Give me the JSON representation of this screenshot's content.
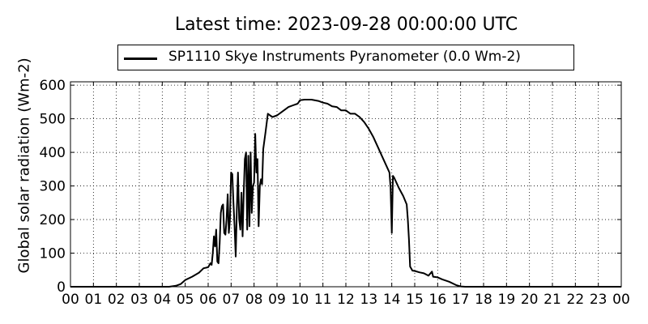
{
  "chart_data": {
    "type": "line",
    "title": "Latest time: 2023-09-28 00:00:00 UTC",
    "xlabel": "",
    "ylabel": "Global solar radiation (Wm-2)",
    "xlim": [
      0,
      24
    ],
    "ylim": [
      0,
      610
    ],
    "grid": true,
    "legend_position": "top",
    "x_tick_labels": [
      "00",
      "01",
      "02",
      "03",
      "04",
      "05",
      "06",
      "07",
      "08",
      "09",
      "10",
      "11",
      "12",
      "13",
      "14",
      "15",
      "16",
      "17",
      "18",
      "19",
      "20",
      "21",
      "22",
      "23",
      "00"
    ],
    "y_tick_labels": [
      "0",
      "100",
      "200",
      "300",
      "400",
      "500",
      "600"
    ],
    "y_ticks": [
      0,
      100,
      200,
      300,
      400,
      500,
      600
    ],
    "series": [
      {
        "name": "SP1110 Skye Instruments Pyranometer (0.0 Wm-2)",
        "color": "#000000",
        "points": [
          [
            0,
            0
          ],
          [
            4.3,
            0
          ],
          [
            4.6,
            3
          ],
          [
            4.8,
            8
          ],
          [
            5.0,
            20
          ],
          [
            5.3,
            30
          ],
          [
            5.6,
            42
          ],
          [
            5.8,
            55
          ],
          [
            6.0,
            58
          ],
          [
            6.1,
            70
          ],
          [
            6.15,
            65
          ],
          [
            6.2,
            100
          ],
          [
            6.25,
            150
          ],
          [
            6.3,
            120
          ],
          [
            6.35,
            170
          ],
          [
            6.4,
            75
          ],
          [
            6.45,
            70
          ],
          [
            6.5,
            130
          ],
          [
            6.55,
            220
          ],
          [
            6.6,
            240
          ],
          [
            6.65,
            245
          ],
          [
            6.7,
            160
          ],
          [
            6.75,
            155
          ],
          [
            6.8,
            200
          ],
          [
            6.85,
            275
          ],
          [
            6.9,
            160
          ],
          [
            6.95,
            200
          ],
          [
            7.0,
            340
          ],
          [
            7.05,
            335
          ],
          [
            7.1,
            250
          ],
          [
            7.15,
            180
          ],
          [
            7.2,
            90
          ],
          [
            7.25,
            230
          ],
          [
            7.3,
            340
          ],
          [
            7.35,
            200
          ],
          [
            7.4,
            170
          ],
          [
            7.45,
            280
          ],
          [
            7.5,
            150
          ],
          [
            7.55,
            280
          ],
          [
            7.6,
            380
          ],
          [
            7.65,
            400
          ],
          [
            7.7,
            170
          ],
          [
            7.75,
            390
          ],
          [
            7.8,
            180
          ],
          [
            7.85,
            400
          ],
          [
            7.9,
            220
          ],
          [
            7.95,
            300
          ],
          [
            8.0,
            310
          ],
          [
            8.05,
            455
          ],
          [
            8.1,
            340
          ],
          [
            8.15,
            380
          ],
          [
            8.2,
            180
          ],
          [
            8.25,
            300
          ],
          [
            8.3,
            320
          ],
          [
            8.35,
            305
          ],
          [
            8.4,
            410
          ],
          [
            8.5,
            460
          ],
          [
            8.6,
            515
          ],
          [
            8.7,
            510
          ],
          [
            8.8,
            505
          ],
          [
            9.0,
            510
          ],
          [
            9.2,
            520
          ],
          [
            9.5,
            535
          ],
          [
            9.7,
            540
          ],
          [
            9.9,
            545
          ],
          [
            10.0,
            555
          ],
          [
            10.2,
            557
          ],
          [
            10.5,
            557
          ],
          [
            10.8,
            553
          ],
          [
            11.0,
            548
          ],
          [
            11.2,
            545
          ],
          [
            11.4,
            537
          ],
          [
            11.6,
            535
          ],
          [
            11.8,
            525
          ],
          [
            12.0,
            525
          ],
          [
            12.2,
            515
          ],
          [
            12.4,
            515
          ],
          [
            12.6,
            505
          ],
          [
            12.8,
            490
          ],
          [
            13.0,
            470
          ],
          [
            13.2,
            445
          ],
          [
            13.4,
            415
          ],
          [
            13.6,
            385
          ],
          [
            13.8,
            355
          ],
          [
            13.9,
            340
          ],
          [
            13.95,
            295
          ],
          [
            14.0,
            160
          ],
          [
            14.05,
            330
          ],
          [
            14.1,
            325
          ],
          [
            14.3,
            295
          ],
          [
            14.5,
            270
          ],
          [
            14.65,
            245
          ],
          [
            14.7,
            200
          ],
          [
            14.75,
            140
          ],
          [
            14.8,
            60
          ],
          [
            14.9,
            48
          ],
          [
            15.0,
            47
          ],
          [
            15.2,
            43
          ],
          [
            15.4,
            40
          ],
          [
            15.6,
            33
          ],
          [
            15.75,
            45
          ],
          [
            15.8,
            30
          ],
          [
            16.0,
            28
          ],
          [
            16.2,
            22
          ],
          [
            16.5,
            15
          ],
          [
            16.8,
            5
          ],
          [
            17.0,
            1
          ],
          [
            17.2,
            0
          ],
          [
            24,
            0
          ]
        ]
      }
    ]
  }
}
